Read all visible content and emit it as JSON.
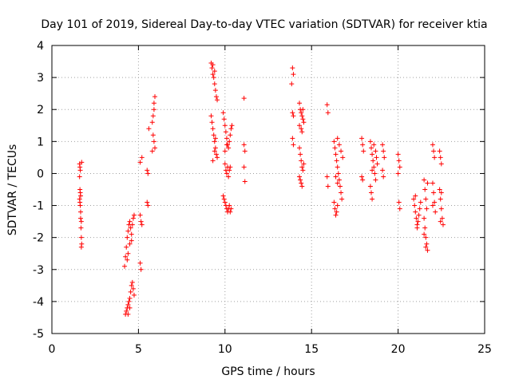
{
  "chart_data": {
    "type": "scatter",
    "title": "Day 101 of 2019, Sidereal Day-to-day VTEC variation (SDTVAR) for receiver ktia",
    "xlabel": "GPS time / hours",
    "ylabel": "SDTVAR / TECUs",
    "xlim": [
      0,
      25
    ],
    "ylim": [
      -5,
      4
    ],
    "xticks": [
      "0",
      "5",
      "10",
      "15",
      "20",
      "25"
    ],
    "yticks": [
      "-5",
      "-4",
      "-3",
      "-2",
      "-1",
      "0",
      "1",
      "2",
      "3",
      "4"
    ],
    "grid": true,
    "marker": "plus",
    "color": "#ff0000",
    "series": [
      {
        "name": "SDTVAR",
        "points": [
          [
            1.6,
            0.3
          ],
          [
            1.62,
            0.2
          ],
          [
            1.64,
            0.1
          ],
          [
            1.6,
            -0.1
          ],
          [
            1.62,
            -0.5
          ],
          [
            1.64,
            -0.6
          ],
          [
            1.66,
            -0.7
          ],
          [
            1.6,
            -0.8
          ],
          [
            1.62,
            -0.9
          ],
          [
            1.64,
            -1.0
          ],
          [
            1.66,
            -1.2
          ],
          [
            1.7,
            -1.5
          ],
          [
            1.68,
            -1.7
          ],
          [
            1.7,
            -2.0
          ],
          [
            1.72,
            -2.2
          ],
          [
            1.72,
            0.35
          ],
          [
            1.7,
            -2.3
          ],
          [
            1.66,
            -1.4
          ],
          [
            4.2,
            -2.9
          ],
          [
            4.25,
            -2.6
          ],
          [
            4.3,
            -2.3
          ],
          [
            4.35,
            -2.0
          ],
          [
            4.4,
            -1.8
          ],
          [
            4.45,
            -1.6
          ],
          [
            4.5,
            -1.5
          ],
          [
            4.55,
            -1.7
          ],
          [
            4.6,
            -1.9
          ],
          [
            4.65,
            -1.6
          ],
          [
            4.7,
            -1.4
          ],
          [
            4.75,
            -1.3
          ],
          [
            4.4,
            -2.5
          ],
          [
            4.5,
            -2.2
          ],
          [
            4.35,
            -2.7
          ],
          [
            4.6,
            -2.1
          ],
          [
            4.25,
            -4.4
          ],
          [
            4.3,
            -4.3
          ],
          [
            4.35,
            -4.2
          ],
          [
            4.4,
            -4.1
          ],
          [
            4.45,
            -4.0
          ],
          [
            4.5,
            -3.9
          ],
          [
            4.55,
            -3.7
          ],
          [
            4.6,
            -3.5
          ],
          [
            4.65,
            -3.4
          ],
          [
            4.7,
            -3.6
          ],
          [
            4.75,
            -3.8
          ],
          [
            4.5,
            -4.2
          ],
          [
            4.4,
            -4.4
          ],
          [
            5.1,
            -1.3
          ],
          [
            5.15,
            -1.5
          ],
          [
            5.2,
            -1.6
          ],
          [
            5.1,
            -2.8
          ],
          [
            5.15,
            -3.0
          ],
          [
            5.2,
            0.5
          ],
          [
            5.1,
            0.35
          ],
          [
            5.5,
            -0.9
          ],
          [
            5.55,
            -1.0
          ],
          [
            5.5,
            0.1
          ],
          [
            5.55,
            0.0
          ],
          [
            5.6,
            1.4
          ],
          [
            5.8,
            1.6
          ],
          [
            5.85,
            1.8
          ],
          [
            5.9,
            2.0
          ],
          [
            5.95,
            2.4
          ],
          [
            5.9,
            2.2
          ],
          [
            5.85,
            1.2
          ],
          [
            5.9,
            1.0
          ],
          [
            5.95,
            0.8
          ],
          [
            5.8,
            0.7
          ],
          [
            9.2,
            3.45
          ],
          [
            9.25,
            3.3
          ],
          [
            9.3,
            3.1
          ],
          [
            9.35,
            3.0
          ],
          [
            9.4,
            2.8
          ],
          [
            9.45,
            2.6
          ],
          [
            9.5,
            2.4
          ],
          [
            9.55,
            2.3
          ],
          [
            9.3,
            3.4
          ],
          [
            9.4,
            3.2
          ],
          [
            9.2,
            1.8
          ],
          [
            9.25,
            1.6
          ],
          [
            9.3,
            1.4
          ],
          [
            9.35,
            1.2
          ],
          [
            9.4,
            1.0
          ],
          [
            9.45,
            0.8
          ],
          [
            9.5,
            0.6
          ],
          [
            9.55,
            0.5
          ],
          [
            9.3,
            0.4
          ],
          [
            9.4,
            0.7
          ],
          [
            9.45,
            1.1
          ],
          [
            9.9,
            1.9
          ],
          [
            9.95,
            1.7
          ],
          [
            10.0,
            1.5
          ],
          [
            10.05,
            1.3
          ],
          [
            10.1,
            1.1
          ],
          [
            10.15,
            0.9
          ],
          [
            10.2,
            0.8
          ],
          [
            10.25,
            1.0
          ],
          [
            10.3,
            1.2
          ],
          [
            10.35,
            1.4
          ],
          [
            10.4,
            1.5
          ],
          [
            10.0,
            0.7
          ],
          [
            10.1,
            0.9
          ],
          [
            10.0,
            0.3
          ],
          [
            10.05,
            0.1
          ],
          [
            10.1,
            0.0
          ],
          [
            10.15,
            0.2
          ],
          [
            10.2,
            -0.1
          ],
          [
            10.25,
            0.1
          ],
          [
            10.3,
            0.2
          ],
          [
            9.9,
            -0.7
          ],
          [
            9.95,
            -0.8
          ],
          [
            10.0,
            -0.9
          ],
          [
            10.05,
            -1.0
          ],
          [
            10.1,
            -1.1
          ],
          [
            10.15,
            -1.2
          ],
          [
            10.2,
            -1.1
          ],
          [
            10.25,
            -1.0
          ],
          [
            10.3,
            -1.2
          ],
          [
            10.35,
            -1.1
          ],
          [
            11.1,
            0.9
          ],
          [
            11.15,
            0.7
          ],
          [
            11.1,
            0.2
          ],
          [
            11.15,
            -0.25
          ],
          [
            11.1,
            2.35
          ],
          [
            13.9,
            3.3
          ],
          [
            13.95,
            3.1
          ],
          [
            13.85,
            2.8
          ],
          [
            13.9,
            1.9
          ],
          [
            13.95,
            1.8
          ],
          [
            13.9,
            1.1
          ],
          [
            13.95,
            0.9
          ],
          [
            14.3,
            2.2
          ],
          [
            14.35,
            2.0
          ],
          [
            14.4,
            1.9
          ],
          [
            14.45,
            1.8
          ],
          [
            14.5,
            1.7
          ],
          [
            14.55,
            1.6
          ],
          [
            14.3,
            1.5
          ],
          [
            14.4,
            1.4
          ],
          [
            14.45,
            1.3
          ],
          [
            14.5,
            2.0
          ],
          [
            14.3,
            0.8
          ],
          [
            14.35,
            0.6
          ],
          [
            14.4,
            0.4
          ],
          [
            14.45,
            0.2
          ],
          [
            14.5,
            0.1
          ],
          [
            14.3,
            -0.1
          ],
          [
            14.35,
            -0.2
          ],
          [
            14.4,
            -0.3
          ],
          [
            14.45,
            -0.4
          ],
          [
            14.55,
            0.3
          ],
          [
            15.9,
            2.15
          ],
          [
            15.95,
            1.9
          ],
          [
            15.9,
            -0.1
          ],
          [
            15.95,
            -0.4
          ],
          [
            16.3,
            1.0
          ],
          [
            16.35,
            0.8
          ],
          [
            16.4,
            0.6
          ],
          [
            16.45,
            0.4
          ],
          [
            16.5,
            0.2
          ],
          [
            16.55,
            0.0
          ],
          [
            16.6,
            -0.2
          ],
          [
            16.65,
            -0.4
          ],
          [
            16.7,
            -0.6
          ],
          [
            16.75,
            -0.8
          ],
          [
            16.5,
            1.1
          ],
          [
            16.6,
            0.9
          ],
          [
            16.7,
            0.7
          ],
          [
            16.8,
            0.5
          ],
          [
            16.3,
            -0.9
          ],
          [
            16.35,
            -1.1
          ],
          [
            16.4,
            -1.3
          ],
          [
            16.45,
            -1.2
          ],
          [
            16.5,
            -1.0
          ],
          [
            16.4,
            -0.1
          ],
          [
            16.5,
            -0.3
          ],
          [
            17.9,
            1.1
          ],
          [
            17.95,
            0.9
          ],
          [
            18.0,
            0.7
          ],
          [
            17.9,
            -0.1
          ],
          [
            17.95,
            -0.2
          ],
          [
            18.4,
            1.0
          ],
          [
            18.45,
            0.8
          ],
          [
            18.5,
            0.6
          ],
          [
            18.55,
            0.4
          ],
          [
            18.6,
            0.2
          ],
          [
            18.65,
            0.0
          ],
          [
            18.7,
            -0.2
          ],
          [
            18.4,
            -0.4
          ],
          [
            18.45,
            -0.6
          ],
          [
            18.5,
            -0.8
          ],
          [
            18.6,
            0.9
          ],
          [
            18.7,
            0.7
          ],
          [
            18.75,
            0.5
          ],
          [
            18.8,
            0.3
          ],
          [
            18.5,
            0.1
          ],
          [
            19.1,
            0.9
          ],
          [
            19.15,
            0.7
          ],
          [
            19.2,
            0.5
          ],
          [
            19.1,
            0.1
          ],
          [
            19.15,
            -0.1
          ],
          [
            20.0,
            0.6
          ],
          [
            20.05,
            0.4
          ],
          [
            20.1,
            0.2
          ],
          [
            20.0,
            0.0
          ],
          [
            20.05,
            -0.9
          ],
          [
            20.1,
            -1.1
          ],
          [
            20.9,
            -0.8
          ],
          [
            20.95,
            -1.0
          ],
          [
            21.0,
            -1.2
          ],
          [
            21.05,
            -1.4
          ],
          [
            21.1,
            -1.6
          ],
          [
            21.15,
            -1.5
          ],
          [
            21.2,
            -1.3
          ],
          [
            21.25,
            -1.1
          ],
          [
            21.3,
            -0.9
          ],
          [
            21.0,
            -0.7
          ],
          [
            21.1,
            -1.7
          ],
          [
            21.5,
            -0.2
          ],
          [
            21.55,
            -0.5
          ],
          [
            21.6,
            -0.8
          ],
          [
            21.65,
            -1.1
          ],
          [
            21.5,
            -1.4
          ],
          [
            21.55,
            -1.7
          ],
          [
            21.6,
            -2.0
          ],
          [
            21.65,
            -2.2
          ],
          [
            21.7,
            -2.4
          ],
          [
            21.5,
            -1.9
          ],
          [
            21.6,
            -2.3
          ],
          [
            21.7,
            -0.3
          ],
          [
            22.0,
            0.9
          ],
          [
            22.05,
            0.7
          ],
          [
            22.1,
            0.5
          ],
          [
            22.0,
            -0.3
          ],
          [
            22.05,
            -0.6
          ],
          [
            22.1,
            -0.9
          ],
          [
            22.15,
            -1.2
          ],
          [
            22.0,
            -1.0
          ],
          [
            22.4,
            0.7
          ],
          [
            22.45,
            0.5
          ],
          [
            22.5,
            0.3
          ],
          [
            22.4,
            -0.5
          ],
          [
            22.45,
            -0.8
          ],
          [
            22.5,
            -1.1
          ],
          [
            22.55,
            -1.4
          ],
          [
            22.6,
            -1.6
          ],
          [
            22.45,
            -1.5
          ],
          [
            22.5,
            -0.6
          ]
        ]
      }
    ]
  }
}
